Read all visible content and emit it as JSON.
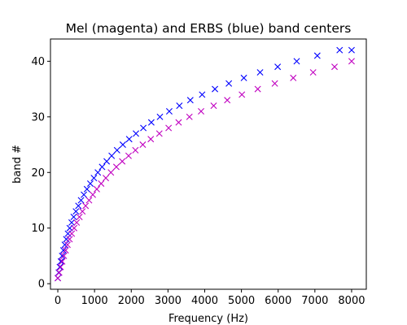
{
  "chart_data": {
    "type": "scatter",
    "title": "Mel (magenta) and ERBS (blue) band centers",
    "xlabel": "Frequency (Hz)",
    "ylabel": "band #",
    "xlim": [
      -200,
      8400
    ],
    "ylim": [
      -1,
      44
    ],
    "xticks": [
      0,
      1000,
      2000,
      3000,
      4000,
      5000,
      6000,
      7000,
      8000
    ],
    "yticks": [
      0,
      10,
      20,
      30,
      40
    ],
    "marker": "x",
    "grid": false,
    "series": [
      {
        "color": "#0000ff",
        "x": [
          0,
          26,
          54,
          84,
          117,
          152,
          190,
          231,
          276,
          324,
          376,
          432,
          493,
          560,
          632,
          710,
          794,
          885,
          983,
          1090,
          1206,
          1331,
          1466,
          1613,
          1771,
          1943,
          2128,
          2329,
          2546,
          2781,
          3035,
          3310,
          3608,
          3930,
          4279,
          4657,
          5066,
          5508,
          5987,
          6505,
          7066,
          7674,
          8000
        ],
        "y": [
          1,
          2,
          3,
          4,
          5,
          6,
          7,
          8,
          9,
          10,
          11,
          12,
          13,
          14,
          15,
          16,
          17,
          18,
          19,
          20,
          21,
          22,
          23,
          24,
          25,
          26,
          27,
          28,
          29,
          30,
          31,
          32,
          33,
          34,
          35,
          36,
          37,
          38,
          39,
          40,
          41,
          42,
          42
        ]
      },
      {
        "color": "#c000c0",
        "x": [
          0,
          38,
          78,
          120,
          165,
          213,
          265,
          320,
          380,
          444,
          514,
          589,
          670,
          757,
          851,
          953,
          1062,
          1180,
          1308,
          1446,
          1594,
          1754,
          1927,
          2113,
          2314,
          2531,
          2765,
          3017,
          3290,
          3584,
          3901,
          4244,
          4614,
          5013,
          5444,
          5909,
          6411,
          6952,
          7536,
          8000
        ],
        "y": [
          1,
          2,
          3,
          4,
          5,
          6,
          7,
          8,
          9,
          10,
          11,
          12,
          13,
          14,
          15,
          16,
          17,
          18,
          19,
          20,
          21,
          22,
          23,
          24,
          25,
          26,
          27,
          28,
          29,
          30,
          31,
          32,
          33,
          34,
          35,
          36,
          37,
          38,
          39,
          40
        ]
      }
    ]
  }
}
